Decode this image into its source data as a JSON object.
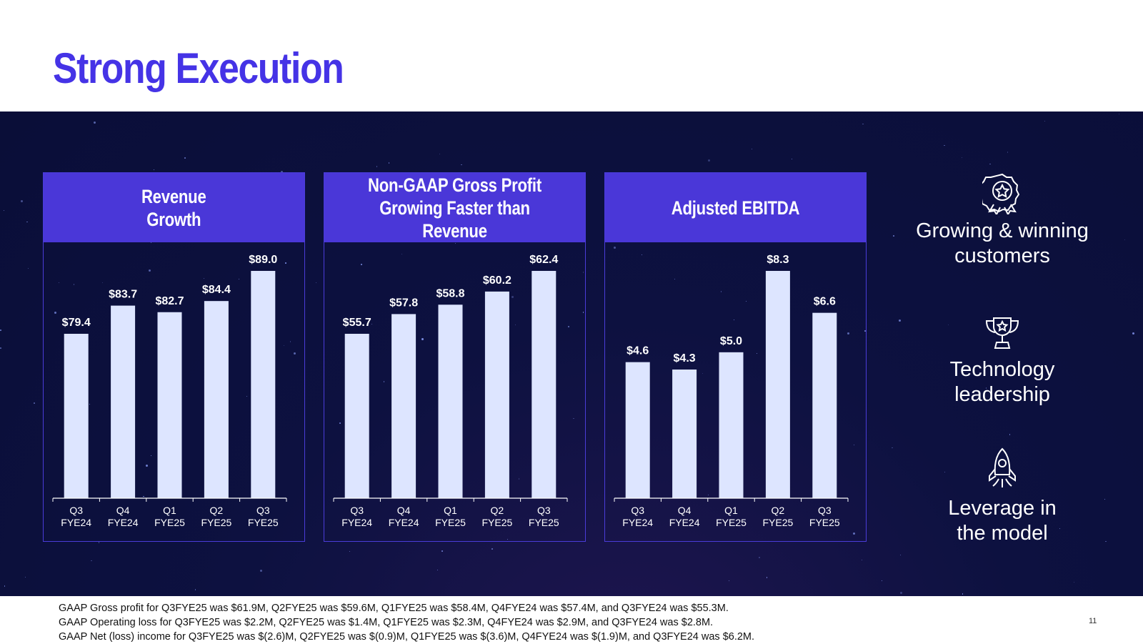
{
  "title": "Strong Execution",
  "colors": {
    "accent": "#4a37d8",
    "title": "#4533e6",
    "background": "#0b0f3a",
    "bar": "#dde5ff"
  },
  "chart_data": [
    {
      "type": "bar",
      "title": "Revenue\nGrowth",
      "categories": [
        "Q3\nFYE24",
        "Q4\nFYE24",
        "Q1\nFYE25",
        "Q2\nFYE25",
        "Q3\nFYE25"
      ],
      "values": [
        79.4,
        83.7,
        82.7,
        84.4,
        89.0
      ],
      "labels": [
        "$79.4",
        "$83.7",
        "$82.7",
        "$84.4",
        "$89.0"
      ]
    },
    {
      "type": "bar",
      "title": "Non-GAAP Gross Profit\nGrowing Faster than Revenue",
      "categories": [
        "Q3\nFYE24",
        "Q4\nFYE24",
        "Q1\nFYE25",
        "Q2\nFYE25",
        "Q3\nFYE25"
      ],
      "values": [
        55.7,
        57.8,
        58.8,
        60.2,
        62.4
      ],
      "labels": [
        "$55.7",
        "$57.8",
        "$58.8",
        "$60.2",
        "$62.4"
      ]
    },
    {
      "type": "bar",
      "title": "Adjusted EBITDA",
      "categories": [
        "Q3\nFYE24",
        "Q4\nFYE24",
        "Q1\nFYE25",
        "Q2\nFYE25",
        "Q3\nFYE25"
      ],
      "values": [
        4.6,
        4.3,
        5.0,
        8.3,
        6.6
      ],
      "labels": [
        "$4.6",
        "$4.3",
        "$5.0",
        "$8.3",
        "$6.6"
      ]
    }
  ],
  "side_items": [
    {
      "label": "Growing & winning\ncustomers",
      "icon": "award-badge-icon"
    },
    {
      "label": "Technology\nleadership",
      "icon": "trophy-icon"
    },
    {
      "label": "Leverage in\nthe model",
      "icon": "rocket-icon"
    }
  ],
  "footnotes": [
    "GAAP Gross profit for Q3FYE25 was $61.9M, Q2FYE25 was $59.6M, Q1FYE25 was $58.4M, Q4FYE24 was $57.4M, and Q3FYE24 was $55.3M.",
    "GAAP Operating loss for Q3FYE25 was $2.2M, Q2FYE25 was $1.4M, Q1FYE25 was $2.3M, Q4FYE24 was $2.9M, and Q3FYE24 was $2.8M.",
    "GAAP Net (loss) income for Q3FYE25 was $(2.6)M, Q2FYE25 was $(0.9)M, Q1FYE25 was $(3.6)M, Q4FYE24 was $(1.9)M, and Q3FYE24 was $6.2M."
  ],
  "page_number": "11"
}
